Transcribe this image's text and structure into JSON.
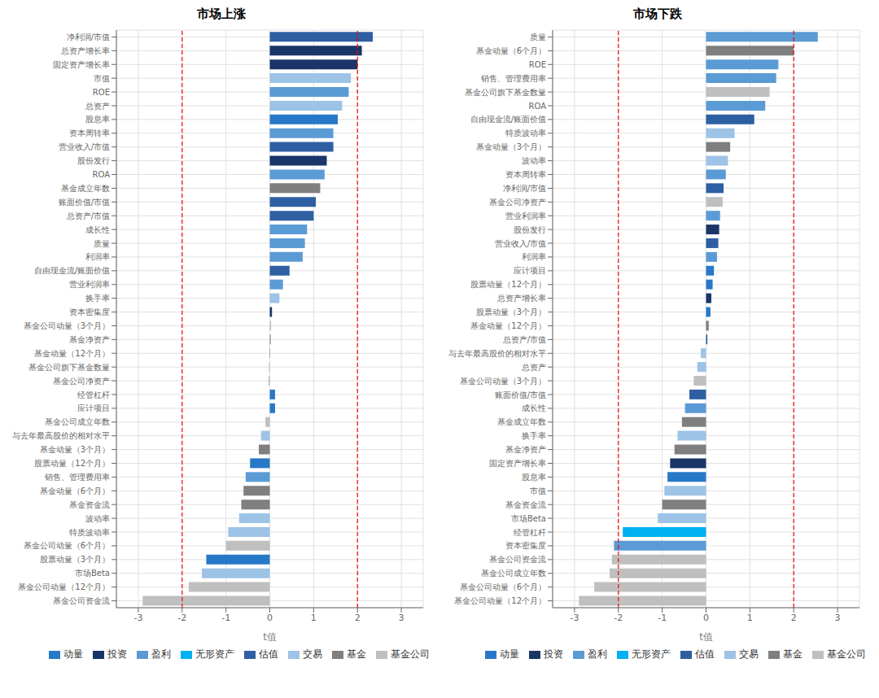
{
  "chart_data": [
    {
      "type": "bar",
      "orientation": "horizontal",
      "stacked": true,
      "title": "市场上涨",
      "xlabel": "t值",
      "xlim": [
        -3.5,
        3.5
      ],
      "xticks": [
        -3,
        -2,
        -1,
        0,
        1,
        2,
        3
      ],
      "vlines": [
        -2,
        2
      ],
      "grid": true,
      "legend": "lower right",
      "categories": [
        "净利润/市值",
        "总资产增长率",
        "固定资产增长率",
        "市值",
        "ROE",
        "总资产",
        "股息率",
        "资本周转率",
        "营业收入/市值",
        "股份发行",
        "ROA",
        "基金成立年数",
        "账面价值/市值",
        "总资产/市值",
        "成长性",
        "质量",
        "利润率",
        "自由现金流/账面价值",
        "营业利润率",
        "换手率",
        "资本密集度",
        "基金公司动量（3个月）",
        "基金净资产",
        "基金动量（12个月）",
        "基金公司旗下基金数量",
        "基金公司净资产",
        "经管杠杆",
        "应计项目",
        "基金公司成立年数",
        "与去年最高股价的相对水平",
        "基金动量（3个月）",
        "股票动量（12个月）",
        "销售、管理费用率",
        "基金动量（6个月）",
        "基金资金流",
        "波动率",
        "特质波动率",
        "基金公司动量（6个月）",
        "股票动量（3个月）",
        "市场Beta",
        "基金公司动量（12个月）",
        "基金公司资金流"
      ],
      "series": [
        {
          "name": "动量",
          "color": "#2878C8",
          "values": [
            null,
            null,
            null,
            null,
            null,
            null,
            1.55,
            null,
            null,
            null,
            null,
            null,
            null,
            null,
            null,
            null,
            null,
            null,
            null,
            null,
            null,
            null,
            null,
            null,
            null,
            null,
            0.12,
            0.12,
            null,
            null,
            null,
            -0.45,
            null,
            null,
            null,
            null,
            null,
            null,
            -1.45,
            null,
            null,
            null
          ]
        },
        {
          "name": "投资",
          "color": "#1A3568",
          "values": [
            null,
            2.1,
            2.0,
            null,
            null,
            null,
            null,
            null,
            null,
            1.3,
            null,
            null,
            null,
            null,
            null,
            null,
            null,
            null,
            null,
            null,
            0.05,
            null,
            null,
            null,
            null,
            null,
            null,
            null,
            null,
            null,
            null,
            null,
            null,
            null,
            null,
            null,
            null,
            null,
            null,
            null,
            null,
            null
          ]
        },
        {
          "name": "盈利",
          "color": "#5B9BD5",
          "values": [
            null,
            null,
            null,
            null,
            1.8,
            null,
            null,
            1.45,
            null,
            null,
            1.25,
            null,
            null,
            null,
            0.85,
            0.8,
            0.75,
            null,
            0.3,
            null,
            null,
            null,
            null,
            null,
            null,
            null,
            null,
            null,
            null,
            null,
            null,
            null,
            -0.55,
            null,
            null,
            null,
            null,
            null,
            null,
            null,
            null,
            null
          ]
        },
        {
          "name": "无形资产",
          "color": "#00B0F0",
          "values": [
            null,
            null,
            null,
            null,
            null,
            null,
            null,
            null,
            null,
            null,
            null,
            null,
            null,
            null,
            null,
            null,
            null,
            null,
            null,
            null,
            null,
            null,
            null,
            null,
            null,
            null,
            null,
            null,
            null,
            null,
            null,
            null,
            null,
            null,
            null,
            null,
            null,
            null,
            null,
            null,
            null,
            null
          ]
        },
        {
          "name": "估值",
          "color": "#2E5FA3",
          "values": [
            2.35,
            null,
            null,
            null,
            null,
            null,
            null,
            null,
            1.45,
            null,
            null,
            null,
            1.05,
            1.0,
            null,
            null,
            null,
            0.45,
            null,
            null,
            null,
            null,
            null,
            null,
            null,
            null,
            null,
            null,
            null,
            null,
            null,
            null,
            null,
            null,
            null,
            null,
            null,
            null,
            null,
            null,
            null,
            null
          ]
        },
        {
          "name": "交易",
          "color": "#9DC3E6",
          "values": [
            null,
            null,
            null,
            1.85,
            null,
            1.65,
            null,
            null,
            null,
            null,
            null,
            null,
            null,
            null,
            null,
            null,
            null,
            null,
            null,
            0.22,
            null,
            null,
            null,
            null,
            null,
            null,
            null,
            null,
            null,
            -0.2,
            null,
            null,
            null,
            null,
            null,
            -0.7,
            -0.95,
            null,
            null,
            -1.55,
            null,
            null
          ]
        },
        {
          "name": "基金",
          "color": "#7F7F7F",
          "values": [
            null,
            null,
            null,
            null,
            null,
            null,
            null,
            null,
            null,
            null,
            null,
            1.15,
            null,
            null,
            null,
            null,
            null,
            null,
            null,
            null,
            null,
            null,
            0.02,
            0.01,
            null,
            null,
            null,
            null,
            null,
            null,
            -0.25,
            null,
            null,
            -0.6,
            -0.65,
            null,
            null,
            null,
            null,
            null,
            null,
            null
          ]
        },
        {
          "name": "基金公司",
          "color": "#BFBFBF",
          "values": [
            null,
            null,
            null,
            null,
            null,
            null,
            null,
            null,
            null,
            null,
            null,
            null,
            null,
            null,
            null,
            null,
            null,
            null,
            null,
            null,
            null,
            0.03,
            null,
            null,
            -0.02,
            -0.03,
            null,
            null,
            -0.1,
            null,
            null,
            null,
            null,
            null,
            null,
            null,
            null,
            -1.0,
            null,
            null,
            -1.85,
            -2.9
          ]
        }
      ]
    },
    {
      "type": "bar",
      "orientation": "horizontal",
      "stacked": true,
      "title": "市场下跌",
      "xlabel": "t值",
      "xlim": [
        -3.5,
        3.5
      ],
      "xticks": [
        -3,
        -2,
        -1,
        0,
        1,
        2,
        3
      ],
      "vlines": [
        -2,
        2
      ],
      "grid": true,
      "legend": "lower right",
      "categories": [
        "质量",
        "基金动量（6个月）",
        "ROE",
        "销售、管理费用率",
        "基金公司旗下基金数量",
        "ROA",
        "自由现金流/账面价值",
        "特质波动率",
        "基金动量（3个月）",
        "波动率",
        "资本周转率",
        "净利润/市值",
        "基金公司净资产",
        "营业利润率",
        "股份发行",
        "营业收入/市值",
        "利润率",
        "应计项目",
        "股票动量（12个月）",
        "总资产增长率",
        "股票动量（3个月）",
        "基金动量（12个月）",
        "总资产/市值",
        "与去年最高股价的相对水平",
        "总资产",
        "基金公司动量（3个月）",
        "账面价值/市值",
        "成长性",
        "基金成立年数",
        "换手率",
        "基金净资产",
        "固定资产增长率",
        "股息率",
        "市值",
        "基金资金流",
        "市场Beta",
        "经管杠杆",
        "资本密集度",
        "基金公司资金流",
        "基金公司成立年数",
        "基金公司动量（6个月）",
        "基金公司动量（12个月）"
      ],
      "series": [
        {
          "name": "动量",
          "color": "#2878C8",
          "values": [
            null,
            null,
            null,
            null,
            null,
            null,
            null,
            null,
            null,
            null,
            null,
            null,
            null,
            null,
            null,
            null,
            null,
            0.18,
            0.15,
            null,
            0.1,
            null,
            null,
            null,
            null,
            null,
            null,
            null,
            null,
            null,
            null,
            null,
            -0.88,
            null,
            null,
            null,
            null,
            null,
            null,
            null,
            null,
            null
          ]
        },
        {
          "name": "投资",
          "color": "#1A3568",
          "values": [
            null,
            null,
            null,
            null,
            null,
            null,
            null,
            null,
            null,
            null,
            null,
            null,
            null,
            null,
            0.3,
            null,
            null,
            null,
            null,
            0.12,
            null,
            null,
            null,
            null,
            null,
            null,
            null,
            null,
            null,
            null,
            null,
            -0.82,
            null,
            null,
            null,
            null,
            null,
            null,
            null,
            null,
            null,
            null
          ]
        },
        {
          "name": "盈利",
          "color": "#5B9BD5",
          "values": [
            2.55,
            null,
            1.65,
            1.6,
            null,
            1.35,
            null,
            null,
            null,
            null,
            0.45,
            null,
            null,
            0.32,
            null,
            null,
            0.25,
            null,
            null,
            null,
            null,
            null,
            null,
            null,
            null,
            null,
            null,
            -0.48,
            null,
            null,
            null,
            null,
            null,
            null,
            null,
            null,
            null,
            -2.1,
            null,
            null,
            null,
            null
          ]
        },
        {
          "name": "无形资产",
          "color": "#00B0F0",
          "values": [
            null,
            null,
            null,
            null,
            null,
            null,
            null,
            null,
            null,
            null,
            null,
            null,
            null,
            null,
            null,
            null,
            null,
            null,
            null,
            null,
            null,
            null,
            null,
            null,
            null,
            null,
            null,
            null,
            null,
            null,
            null,
            null,
            null,
            null,
            null,
            null,
            -1.9,
            null,
            null,
            null,
            null,
            null
          ]
        },
        {
          "name": "估值",
          "color": "#2E5FA3",
          "values": [
            null,
            null,
            null,
            null,
            null,
            null,
            1.1,
            null,
            null,
            null,
            null,
            0.4,
            null,
            null,
            null,
            0.28,
            null,
            null,
            null,
            null,
            null,
            null,
            0.03,
            null,
            null,
            null,
            -0.38,
            null,
            null,
            null,
            null,
            null,
            null,
            null,
            null,
            null,
            null,
            null,
            null,
            null,
            null,
            null
          ]
        },
        {
          "name": "交易",
          "color": "#9DC3E6",
          "values": [
            null,
            null,
            null,
            null,
            null,
            null,
            null,
            0.65,
            null,
            0.5,
            null,
            null,
            null,
            null,
            null,
            null,
            null,
            null,
            null,
            null,
            null,
            null,
            null,
            -0.12,
            -0.2,
            null,
            null,
            null,
            null,
            -0.65,
            null,
            null,
            null,
            -0.95,
            null,
            -1.1,
            null,
            null,
            null,
            null,
            null,
            null
          ]
        },
        {
          "name": "基金",
          "color": "#7F7F7F",
          "values": [
            null,
            2.0,
            null,
            null,
            null,
            null,
            null,
            null,
            0.55,
            null,
            null,
            null,
            null,
            null,
            null,
            null,
            null,
            null,
            null,
            null,
            null,
            0.06,
            null,
            null,
            null,
            null,
            null,
            null,
            -0.55,
            null,
            -0.72,
            null,
            null,
            null,
            -1.0,
            null,
            null,
            null,
            null,
            null,
            null,
            null
          ]
        },
        {
          "name": "基金公司",
          "color": "#BFBFBF",
          "values": [
            null,
            null,
            null,
            null,
            1.45,
            null,
            null,
            null,
            null,
            null,
            null,
            null,
            0.38,
            null,
            null,
            null,
            null,
            null,
            null,
            null,
            null,
            null,
            null,
            null,
            null,
            -0.28,
            null,
            null,
            null,
            null,
            null,
            null,
            null,
            null,
            null,
            null,
            null,
            null,
            -2.15,
            -2.2,
            -2.55,
            -2.9
          ]
        }
      ]
    }
  ]
}
